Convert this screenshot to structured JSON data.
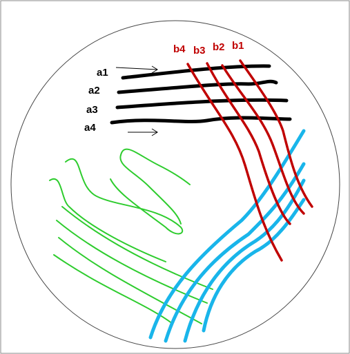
{
  "labels": {
    "a": [
      "a1",
      "a2",
      "a3",
      "a4"
    ],
    "b": [
      "b4",
      "b3",
      "b2",
      "b1"
    ]
  }
}
